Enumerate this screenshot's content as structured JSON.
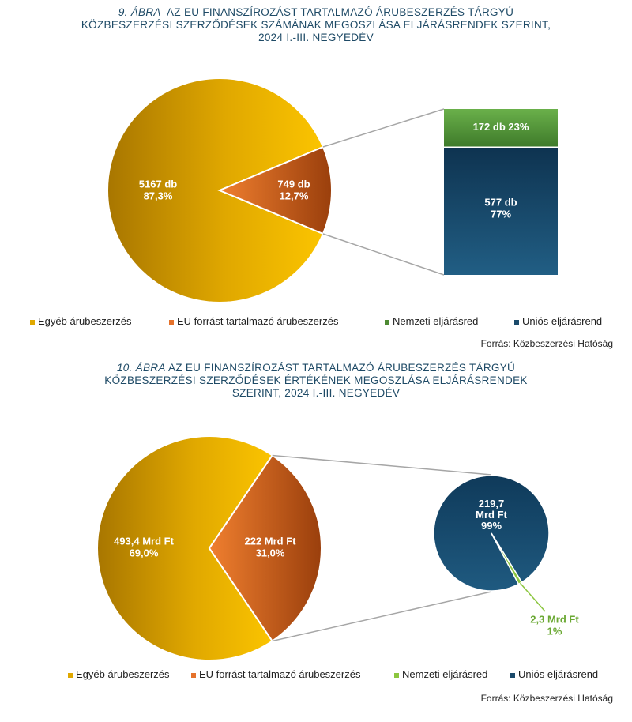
{
  "charts": [
    {
      "title_num": "9. ÁBRA",
      "title_lines": [
        "AZ EU FINANSZÍROZÁST TARTALMAZÓ ÁRUBESZERZÉS TÁRGYÚ",
        "KÖZBESZERZÉSI SZERZŐDÉSEK SZÁMÁNAK MEGOSZLÁSA ELJÁRÁSRENDEK SZERINT,",
        "2024 I.-III. NEGYEDÉV"
      ],
      "source": "Forrás: Közbeszerzési Hatóság",
      "legend": [
        {
          "label": "Egyéb árubeszerzés",
          "color": "#e0a800"
        },
        {
          "label": "EU forrást tartalmazó árubeszerzés",
          "color": "#e5722b"
        },
        {
          "label": "Nemzeti eljárásred",
          "color": "#4e8a33"
        },
        {
          "label": "Uniós eljárásrend",
          "color": "#1b4a6b"
        }
      ]
    },
    {
      "title_num": "10. ÁBRA",
      "title_lines": [
        "AZ EU FINANSZÍROZÁST TARTALMAZÓ ÁRUBESZERZÉS TÁRGYÚ",
        "KÖZBESZERZÉSI SZERZŐDÉSEK ÉRTÉKÉNEK MEGOSZLÁSA ELJÁRÁSRENDEK",
        "SZERINT, 2024 I.-III. NEGYEDÉV"
      ],
      "source": "Forrás: Közbeszerzési Hatóság",
      "legend": [
        {
          "label": "Egyéb árubeszerzés",
          "color": "#e0a800"
        },
        {
          "label": "EU forrást tartalmazó árubeszerzés",
          "color": "#e5722b"
        },
        {
          "label": "Nemzeti eljárásred",
          "color": "#8cc63f"
        },
        {
          "label": "Uniós eljárásrend",
          "color": "#1b4a6b"
        }
      ]
    }
  ],
  "chart_data": [
    {
      "type": "pie",
      "variant": "pie-of-bar",
      "slices": [
        {
          "name": "Egyéb árubeszerzés",
          "value": 5167,
          "label_lines": [
            "5167 db",
            "87,3%"
          ],
          "color": "#e0a800"
        },
        {
          "name": "EU forrást tartalmazó árubeszerzés",
          "value": 749,
          "label_lines": [
            "749 db",
            "12,7%"
          ],
          "color": "#e5722b"
        }
      ],
      "breakdown": [
        {
          "name": "Nemzeti eljárásred",
          "value": 172,
          "label_lines": [
            "172 db 23%"
          ],
          "color": "#4e8a33"
        },
        {
          "name": "Uniós eljárásrend",
          "value": 577,
          "label_lines": [
            "577 db",
            "77%"
          ],
          "color": "#1b4a6b"
        }
      ],
      "legend_position": "bottom"
    },
    {
      "type": "pie",
      "variant": "pie-of-pie",
      "slices": [
        {
          "name": "Egyéb árubeszerzés",
          "value": 493.4,
          "label_lines": [
            "493,4 Mrd Ft",
            "69,0%"
          ],
          "color": "#e0a800"
        },
        {
          "name": "EU forrást tartalmazó árubeszerzés",
          "value": 222,
          "label_lines": [
            "222 Mrd Ft",
            "31,0%"
          ],
          "color": "#e5722b"
        }
      ],
      "breakdown": [
        {
          "name": "Uniós eljárásrend",
          "value": 219.7,
          "label_lines": [
            "219,7",
            "Mrd Ft",
            "99%"
          ],
          "color": "#1b4a6b"
        },
        {
          "name": "Nemzeti eljárásred",
          "value": 2.3,
          "label_lines": [
            "2,3 Mrd Ft",
            "1%"
          ],
          "color": "#8cc63f"
        }
      ],
      "legend_position": "bottom"
    }
  ]
}
